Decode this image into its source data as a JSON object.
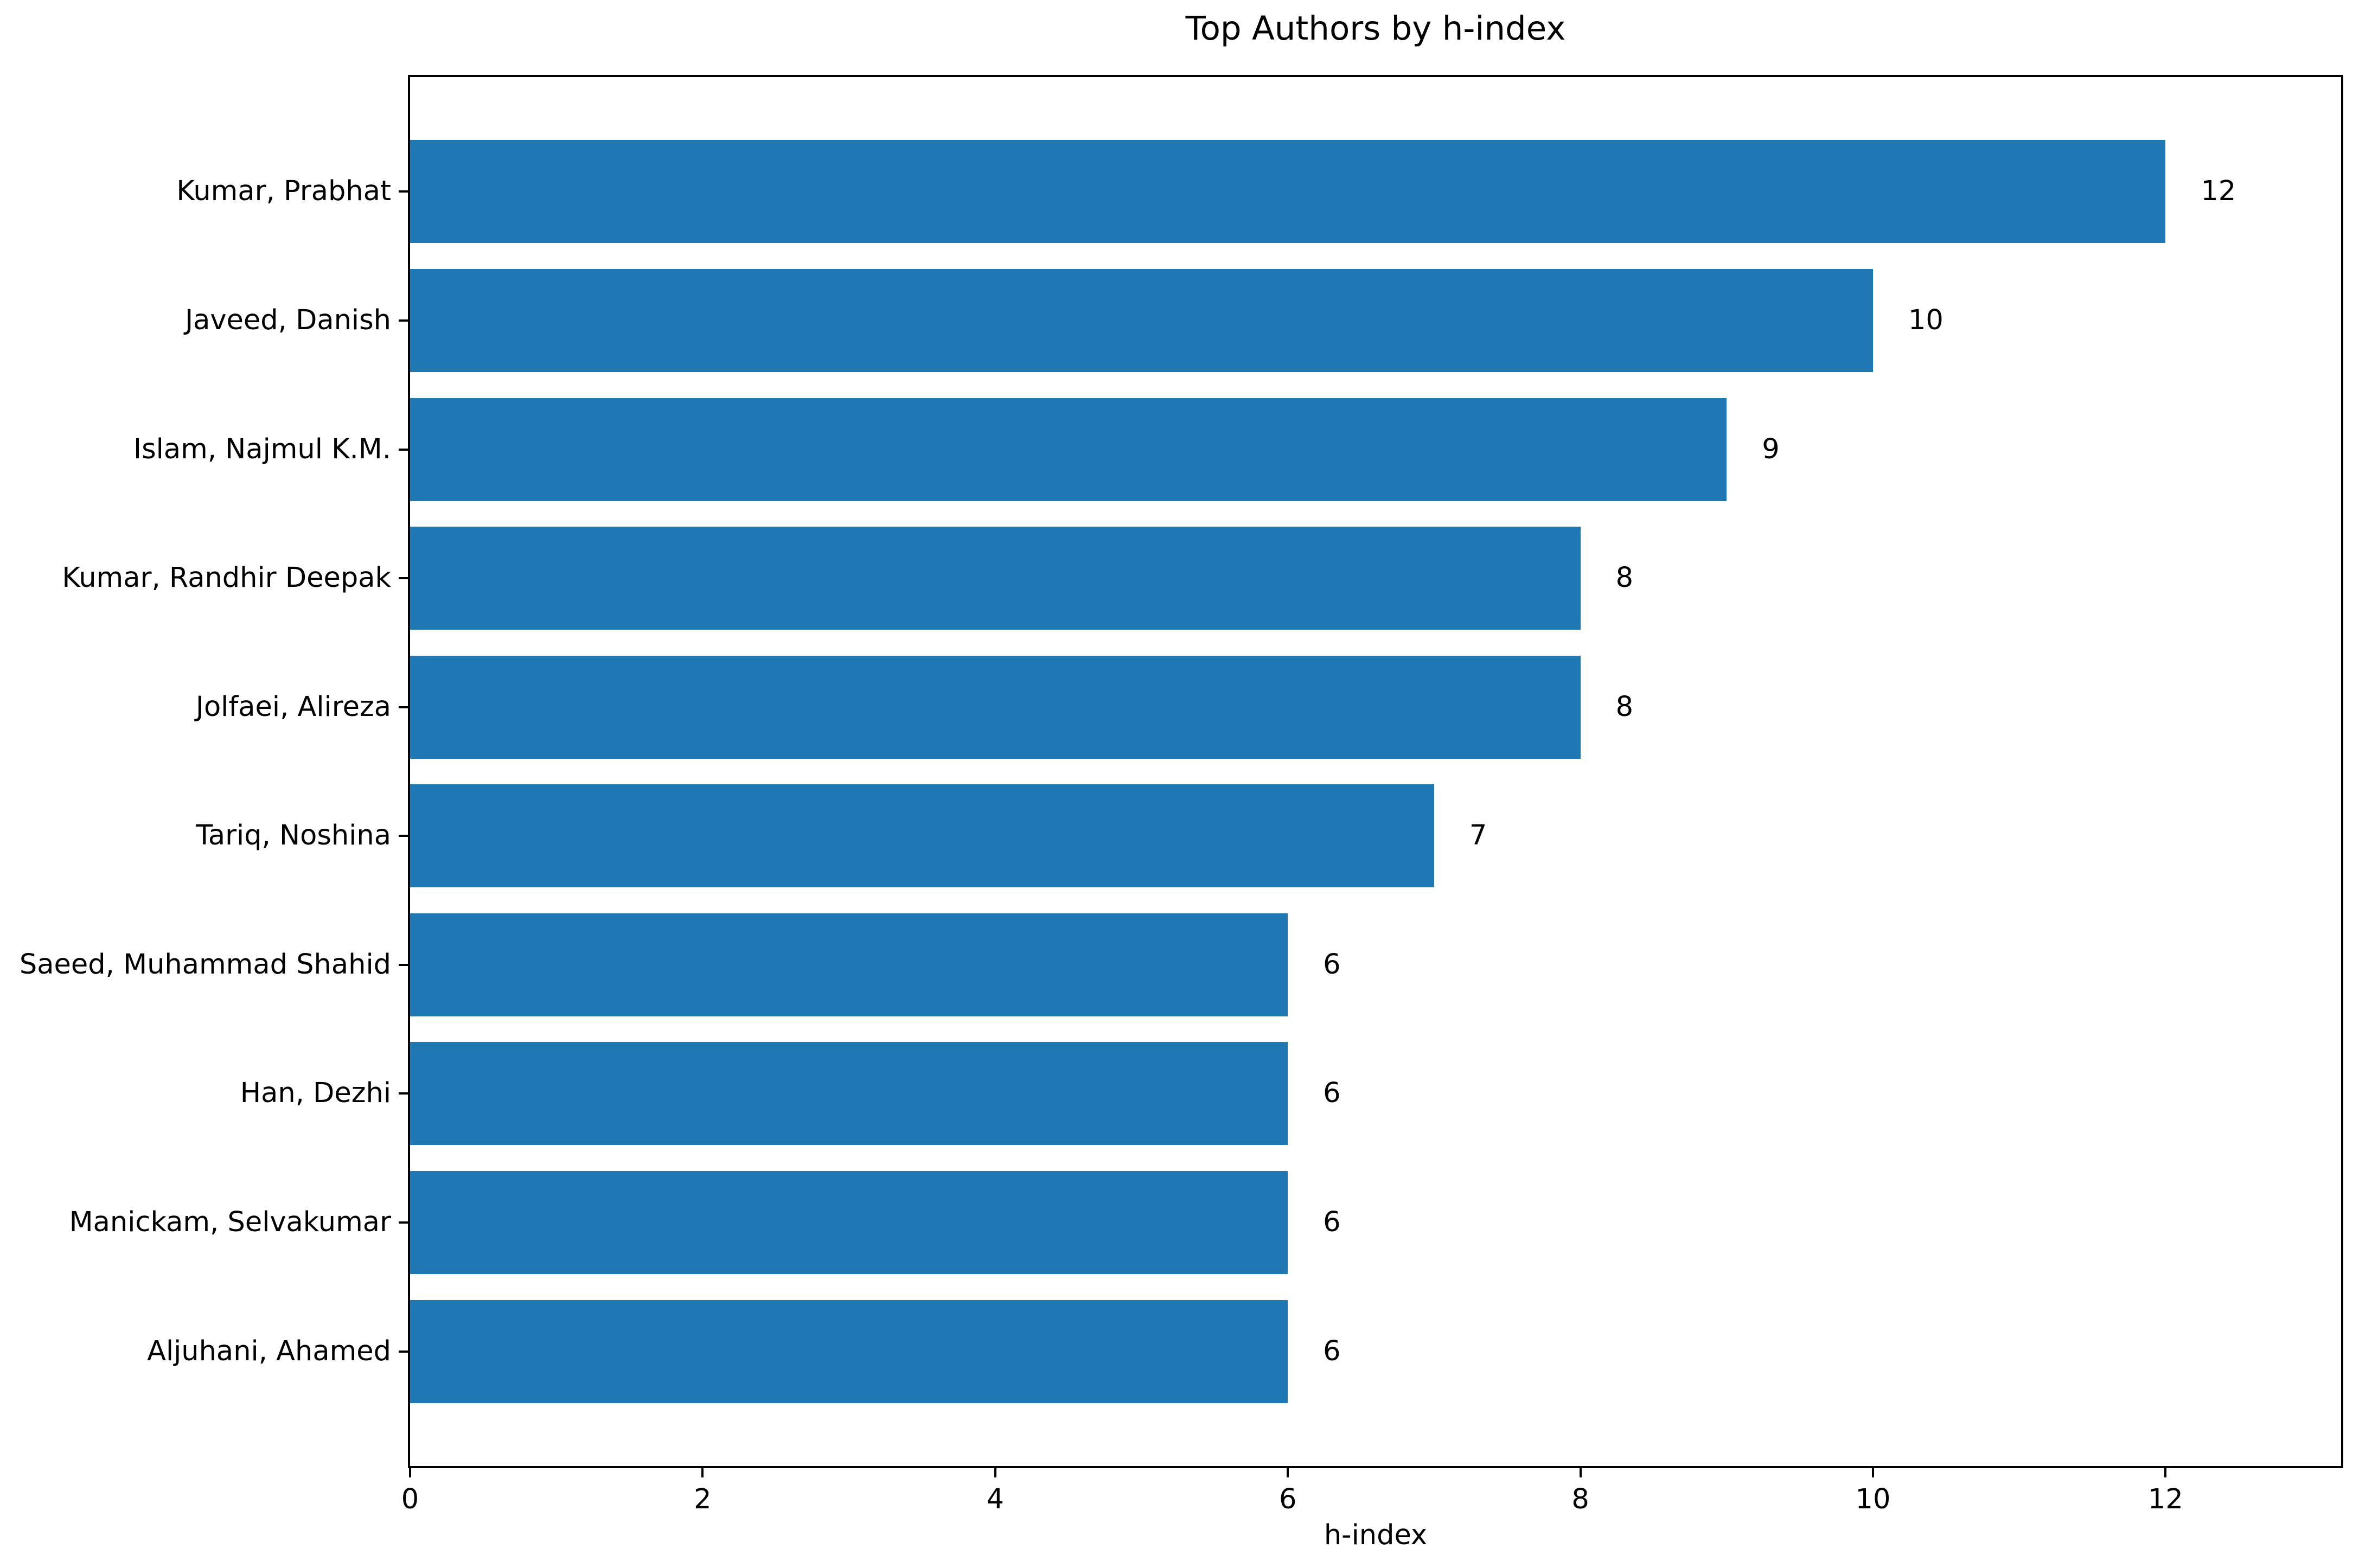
{
  "chart_data": {
    "type": "bar",
    "orientation": "horizontal",
    "title": "Top Authors by h-index",
    "xlabel": "h-index",
    "ylabel": "",
    "categories": [
      "Kumar, Prabhat",
      "Javeed, Danish",
      "Islam, Najmul K.M.",
      "Kumar, Randhir Deepak",
      "Jolfaei, Alireza",
      "Tariq, Noshina",
      "Saeed, Muhammad Shahid",
      "Han, Dezhi",
      "Manickam, Selvakumar",
      "Aljuhani, Ahamed"
    ],
    "values": [
      12,
      10,
      9,
      8,
      8,
      7,
      6,
      6,
      6,
      6
    ],
    "x_ticks": [
      0,
      2,
      4,
      6,
      8,
      10,
      12
    ],
    "xlim": [
      0,
      13.2
    ],
    "bar_color": "#1f77b4",
    "text_color": "#000000",
    "frame_color": "#000000",
    "background_color": "#ffffff",
    "grid": false,
    "legend": false,
    "value_labels_shown": true
  }
}
